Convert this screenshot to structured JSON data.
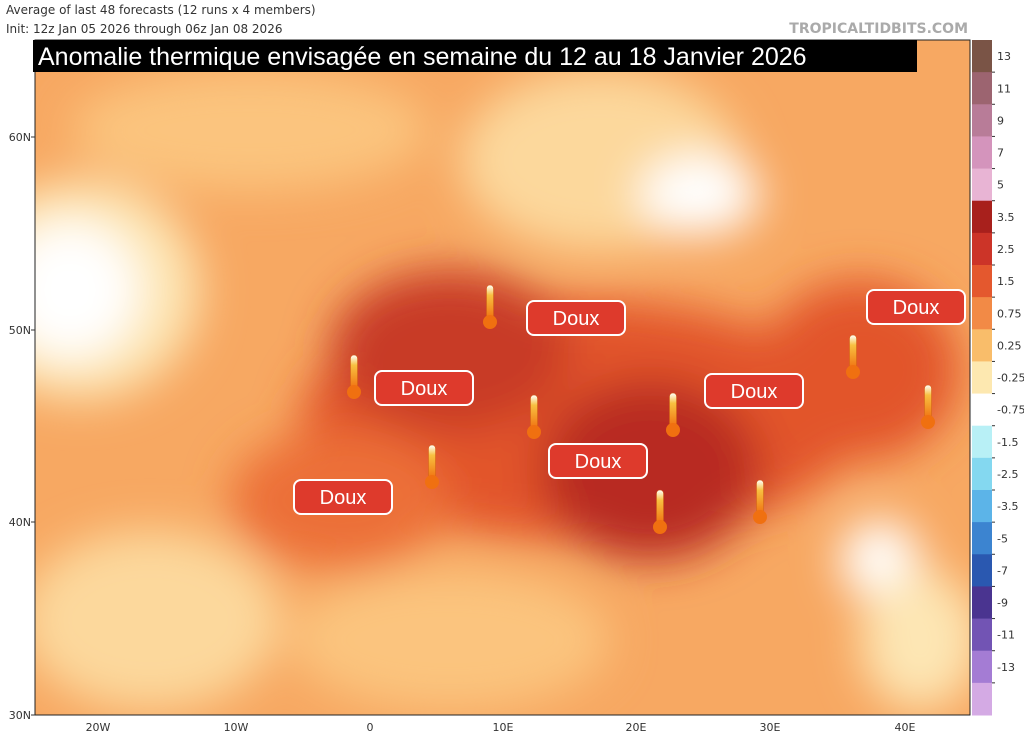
{
  "header": {
    "line1": "Average of last 48 forecasts (12 runs x 4 members)",
    "line2": "Init: 12z Jan 05 2026 through 06z Jan 08 2026",
    "watermark": "TROPICALTIDBITS.COM",
    "title": "Anomalie thermique envisagée en semaine du 12 au 18 Janvier 2026"
  },
  "map": {
    "lat_labels": [
      "60N",
      "50N",
      "40N",
      "30N"
    ],
    "lon_labels": [
      "20W",
      "10W",
      "0",
      "10E",
      "20E",
      "30E",
      "40E"
    ],
    "badges": [
      "Doux",
      "Doux",
      "Doux",
      "Doux",
      "Doux",
      "Doux"
    ]
  },
  "colorbar": {
    "labels": [
      "13",
      "11",
      "9",
      "7",
      "5",
      "3.5",
      "2.5",
      "1.5",
      "0.75",
      "0.25",
      "-0.25",
      "-0.75",
      "-1.5",
      "-2.5",
      "-3.5",
      "-5",
      "-7",
      "-9",
      "-11",
      "-13"
    ]
  }
}
